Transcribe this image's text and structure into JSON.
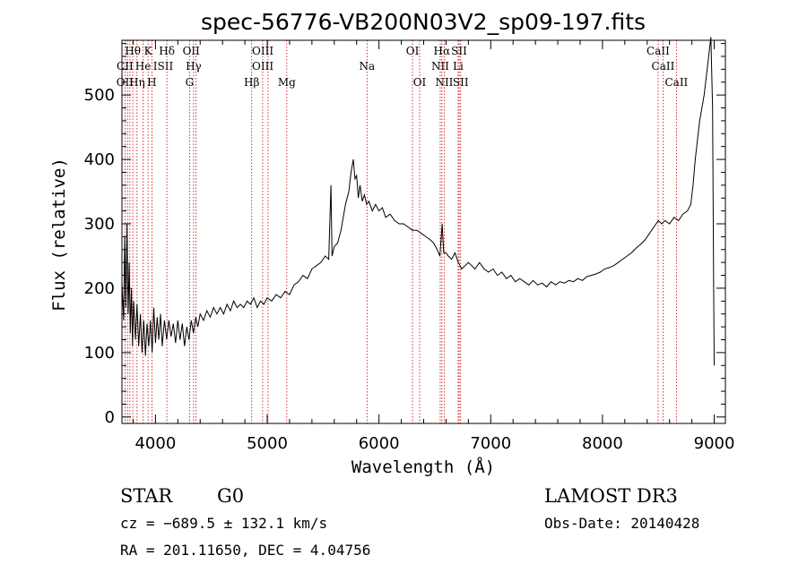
{
  "chart_data": {
    "type": "line",
    "title": "spec-56776-VB200N03V2_sp09-197.fits",
    "xlabel": "Wavelength (Å)",
    "ylabel": "Flux (relative)",
    "xlim": [
      3700,
      9100
    ],
    "ylim": [
      -10,
      585
    ],
    "xticks": [
      4000,
      5000,
      6000,
      7000,
      8000,
      9000
    ],
    "yticks": [
      0,
      100,
      200,
      300,
      400,
      500
    ],
    "grid": false,
    "series": [
      {
        "points": [
          [
            3700,
            210
          ],
          [
            3715,
            150
          ],
          [
            3725,
            280
          ],
          [
            3735,
            170
          ],
          [
            3745,
            300
          ],
          [
            3755,
            160
          ],
          [
            3765,
            240
          ],
          [
            3775,
            130
          ],
          [
            3785,
            200
          ],
          [
            3795,
            110
          ],
          [
            3805,
            180
          ],
          [
            3820,
            120
          ],
          [
            3835,
            175
          ],
          [
            3850,
            110
          ],
          [
            3865,
            160
          ],
          [
            3880,
            100
          ],
          [
            3895,
            150
          ],
          [
            3910,
            95
          ],
          [
            3925,
            145
          ],
          [
            3940,
            110
          ],
          [
            3955,
            150
          ],
          [
            3970,
            100
          ],
          [
            3985,
            170
          ],
          [
            4000,
            115
          ],
          [
            4015,
            155
          ],
          [
            4030,
            120
          ],
          [
            4045,
            160
          ],
          [
            4060,
            110
          ],
          [
            4080,
            150
          ],
          [
            4100,
            120
          ],
          [
            4120,
            150
          ],
          [
            4140,
            125
          ],
          [
            4160,
            145
          ],
          [
            4180,
            115
          ],
          [
            4200,
            150
          ],
          [
            4220,
            120
          ],
          [
            4240,
            145
          ],
          [
            4260,
            110
          ],
          [
            4280,
            140
          ],
          [
            4300,
            120
          ],
          [
            4320,
            150
          ],
          [
            4340,
            130
          ],
          [
            4360,
            155
          ],
          [
            4380,
            140
          ],
          [
            4400,
            160
          ],
          [
            4430,
            150
          ],
          [
            4460,
            165
          ],
          [
            4490,
            155
          ],
          [
            4520,
            170
          ],
          [
            4550,
            160
          ],
          [
            4580,
            170
          ],
          [
            4610,
            160
          ],
          [
            4640,
            175
          ],
          [
            4670,
            165
          ],
          [
            4700,
            180
          ],
          [
            4730,
            170
          ],
          [
            4760,
            175
          ],
          [
            4790,
            170
          ],
          [
            4820,
            180
          ],
          [
            4850,
            175
          ],
          [
            4880,
            185
          ],
          [
            4910,
            170
          ],
          [
            4940,
            180
          ],
          [
            4970,
            175
          ],
          [
            5000,
            185
          ],
          [
            5040,
            180
          ],
          [
            5080,
            190
          ],
          [
            5120,
            185
          ],
          [
            5160,
            195
          ],
          [
            5200,
            190
          ],
          [
            5240,
            205
          ],
          [
            5280,
            210
          ],
          [
            5320,
            220
          ],
          [
            5360,
            215
          ],
          [
            5400,
            230
          ],
          [
            5440,
            235
          ],
          [
            5480,
            240
          ],
          [
            5520,
            250
          ],
          [
            5550,
            245
          ],
          [
            5570,
            360
          ],
          [
            5580,
            250
          ],
          [
            5600,
            265
          ],
          [
            5630,
            270
          ],
          [
            5660,
            290
          ],
          [
            5700,
            330
          ],
          [
            5730,
            350
          ],
          [
            5750,
            380
          ],
          [
            5770,
            400
          ],
          [
            5785,
            370
          ],
          [
            5800,
            375
          ],
          [
            5815,
            340
          ],
          [
            5830,
            360
          ],
          [
            5850,
            335
          ],
          [
            5870,
            345
          ],
          [
            5890,
            330
          ],
          [
            5910,
            335
          ],
          [
            5940,
            320
          ],
          [
            5970,
            330
          ],
          [
            6000,
            320
          ],
          [
            6030,
            325
          ],
          [
            6060,
            310
          ],
          [
            6100,
            315
          ],
          [
            6140,
            305
          ],
          [
            6180,
            300
          ],
          [
            6220,
            300
          ],
          [
            6260,
            295
          ],
          [
            6300,
            290
          ],
          [
            6340,
            290
          ],
          [
            6380,
            285
          ],
          [
            6420,
            280
          ],
          [
            6460,
            275
          ],
          [
            6490,
            270
          ],
          [
            6520,
            260
          ],
          [
            6545,
            250
          ],
          [
            6565,
            300
          ],
          [
            6580,
            255
          ],
          [
            6600,
            255
          ],
          [
            6620,
            250
          ],
          [
            6650,
            245
          ],
          [
            6680,
            255
          ],
          [
            6710,
            240
          ],
          [
            6740,
            230
          ],
          [
            6770,
            235
          ],
          [
            6800,
            240
          ],
          [
            6830,
            235
          ],
          [
            6860,
            230
          ],
          [
            6900,
            240
          ],
          [
            6940,
            230
          ],
          [
            6980,
            225
          ],
          [
            7020,
            230
          ],
          [
            7060,
            220
          ],
          [
            7100,
            225
          ],
          [
            7140,
            215
          ],
          [
            7180,
            220
          ],
          [
            7220,
            210
          ],
          [
            7260,
            215
          ],
          [
            7300,
            210
          ],
          [
            7340,
            205
          ],
          [
            7380,
            212
          ],
          [
            7420,
            205
          ],
          [
            7460,
            208
          ],
          [
            7500,
            202
          ],
          [
            7540,
            210
          ],
          [
            7580,
            205
          ],
          [
            7620,
            210
          ],
          [
            7660,
            208
          ],
          [
            7700,
            212
          ],
          [
            7740,
            210
          ],
          [
            7780,
            215
          ],
          [
            7820,
            212
          ],
          [
            7860,
            218
          ],
          [
            7900,
            220
          ],
          [
            7940,
            222
          ],
          [
            7980,
            225
          ],
          [
            8020,
            230
          ],
          [
            8060,
            232
          ],
          [
            8100,
            235
          ],
          [
            8140,
            240
          ],
          [
            8180,
            245
          ],
          [
            8220,
            250
          ],
          [
            8260,
            255
          ],
          [
            8300,
            262
          ],
          [
            8340,
            268
          ],
          [
            8380,
            275
          ],
          [
            8420,
            285
          ],
          [
            8460,
            295
          ],
          [
            8500,
            305
          ],
          [
            8530,
            300
          ],
          [
            8560,
            305
          ],
          [
            8600,
            300
          ],
          [
            8640,
            310
          ],
          [
            8680,
            305
          ],
          [
            8720,
            315
          ],
          [
            8760,
            320
          ],
          [
            8790,
            330
          ],
          [
            8810,
            360
          ],
          [
            8830,
            400
          ],
          [
            8850,
            430
          ],
          [
            8870,
            460
          ],
          [
            8890,
            480
          ],
          [
            8910,
            500
          ],
          [
            8930,
            530
          ],
          [
            8950,
            560
          ],
          [
            8970,
            590
          ],
          [
            8985,
            480
          ],
          [
            8995,
            200
          ],
          [
            9000,
            80
          ]
        ]
      }
    ],
    "line_markers_top": [
      {
        "label": "Hθ",
        "x": 3797,
        "row": 0
      },
      {
        "label": "K",
        "x": 3934,
        "row": 0
      },
      {
        "label": "Hδ",
        "x": 4102,
        "row": 0
      },
      {
        "label": "OII",
        "x": 4320,
        "row": 0
      },
      {
        "label": "OIII",
        "x": 4960,
        "row": 0
      },
      {
        "label": "OI",
        "x": 6300,
        "row": 0
      },
      {
        "label": "Hα",
        "x": 6563,
        "row": 0
      },
      {
        "label": "SII",
        "x": 6717,
        "row": 0
      },
      {
        "label": "CaII",
        "x": 8498,
        "row": 0
      },
      {
        "label": "CII",
        "x": 3727,
        "row": 1
      },
      {
        "label": "He",
        "x": 3889,
        "row": 1
      },
      {
        "label": "ISII",
        "x": 4069,
        "row": 1
      },
      {
        "label": "Hγ",
        "x": 4341,
        "row": 1
      },
      {
        "label": "OIII",
        "x": 4960,
        "row": 1
      },
      {
        "label": "Na",
        "x": 5893,
        "row": 1
      },
      {
        "label": "NII",
        "x": 6548,
        "row": 1
      },
      {
        "label": "Li",
        "x": 6708,
        "row": 1
      },
      {
        "label": "CaII",
        "x": 8542,
        "row": 1
      },
      {
        "label": "OII",
        "x": 3727,
        "row": 2
      },
      {
        "label": "Hη",
        "x": 3835,
        "row": 2
      },
      {
        "label": "H",
        "x": 3968,
        "row": 2
      },
      {
        "label": "G",
        "x": 4305,
        "row": 2
      },
      {
        "label": "Hβ",
        "x": 4861,
        "row": 2
      },
      {
        "label": "Mg",
        "x": 5175,
        "row": 2
      },
      {
        "label": "OI",
        "x": 6364,
        "row": 2
      },
      {
        "label": "NII",
        "x": 6584,
        "row": 2
      },
      {
        "label": "SII",
        "x": 6731,
        "row": 2
      },
      {
        "label": "CaII",
        "x": 8662,
        "row": 2
      }
    ],
    "line_positions": [
      3727,
      3750,
      3771,
      3797,
      3835,
      3889,
      3934,
      3968,
      4102,
      4305,
      4341,
      4363,
      4861,
      4959,
      5007,
      5175,
      5893,
      6300,
      6364,
      6548,
      6563,
      6584,
      6708,
      6717,
      6731,
      8498,
      8542,
      8662
    ]
  },
  "info": {
    "object": "STAR",
    "subclass": "G0",
    "survey": "LAMOST DR3",
    "cz": "cz = −689.5 ± 132.1 km/s",
    "obs_date": "Obs-Date: 20140428",
    "radec": "RA = 201.11650, DEC =    4.04756"
  },
  "colors": {
    "line_marker": "#cc0000",
    "spectrum": "#000000"
  }
}
